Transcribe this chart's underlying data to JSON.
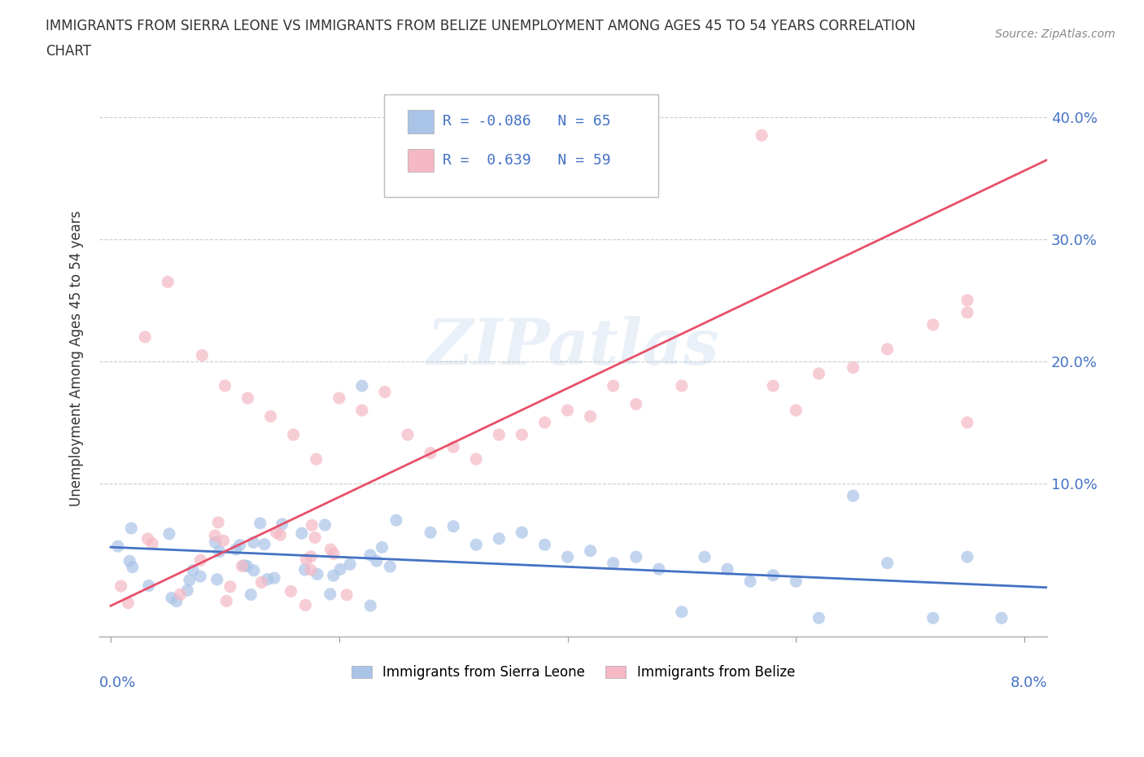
{
  "title_line1": "IMMIGRANTS FROM SIERRA LEONE VS IMMIGRANTS FROM BELIZE UNEMPLOYMENT AMONG AGES 45 TO 54 YEARS CORRELATION",
  "title_line2": "CHART",
  "source": "Source: ZipAtlas.com",
  "ylabel": "Unemployment Among Ages 45 to 54 years",
  "xlim": [
    -0.001,
    0.082
  ],
  "ylim": [
    -0.025,
    0.43
  ],
  "ytick_vals": [
    0.0,
    0.1,
    0.2,
    0.3,
    0.4
  ],
  "ytick_labels": [
    "",
    "10.0%",
    "20.0%",
    "30.0%",
    "40.0%"
  ],
  "xtick_vals": [
    0.0,
    0.02,
    0.04,
    0.06,
    0.08
  ],
  "watermark": "ZIPatlas",
  "sierra_leone_color": "#aac4e8",
  "belize_color": "#f5b8c4",
  "trendline_sierra_color": "#4472c4",
  "trendline_belize_color": "#e8506a",
  "background_color": "#ffffff",
  "grid_color": "#cccccc",
  "text_color": "#4472c4",
  "title_color": "#333333",
  "sl_trendline_x": [
    0.0,
    0.082
  ],
  "sl_trendline_y": [
    0.048,
    0.015
  ],
  "bel_trendline_x": [
    0.0,
    0.082
  ],
  "bel_trendline_y": [
    0.0,
    0.365
  ]
}
